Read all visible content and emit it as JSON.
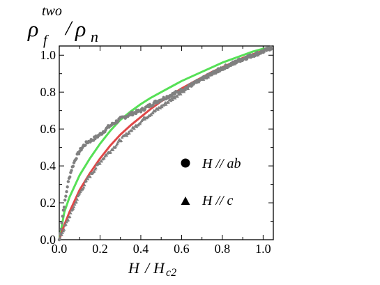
{
  "chart_data": {
    "type": "scatter",
    "ylabel": {
      "numerator_symbol": "ρ",
      "numerator_sub": "f",
      "numerator_sup": "two",
      "separator": "/",
      "denominator_symbol": "ρ",
      "denominator_sub": "n"
    },
    "xlabel": {
      "symbol": "H",
      "separator": "/",
      "denominator_symbol": "H",
      "denominator_sub": "c2"
    },
    "xlim": [
      0.0,
      1.05
    ],
    "ylim": [
      0.0,
      1.05
    ],
    "x_ticks": [
      0.0,
      0.2,
      0.4,
      0.6,
      0.8,
      1.0
    ],
    "y_ticks": [
      0.0,
      0.2,
      0.4,
      0.6,
      0.8,
      1.0
    ],
    "x_tick_labels": [
      "0.0",
      "0.2",
      "0.4",
      "0.6",
      "0.8",
      "1.0"
    ],
    "y_tick_labels": [
      "0.0",
      "0.2",
      "0.4",
      "0.6",
      "0.8",
      "1.0"
    ],
    "grid": false,
    "legend_position": "right",
    "legend": [
      {
        "label": "H // ab",
        "marker": "circle"
      },
      {
        "label": "H // c",
        "marker": "triangle"
      }
    ],
    "series": [
      {
        "marker": "circle",
        "color": "#808080",
        "x": [
          0.0,
          0.01,
          0.02,
          0.03,
          0.04,
          0.05,
          0.06,
          0.07,
          0.08,
          0.09,
          0.1,
          0.12,
          0.14,
          0.16,
          0.18,
          0.2,
          0.22,
          0.24,
          0.26,
          0.28,
          0.3,
          0.33,
          0.36,
          0.4,
          0.44,
          0.48,
          0.52,
          0.56,
          0.6,
          0.65,
          0.7,
          0.75,
          0.8,
          0.85,
          0.9,
          0.95,
          1.0,
          1.04
        ],
        "y": [
          0.0,
          0.08,
          0.16,
          0.22,
          0.29,
          0.34,
          0.38,
          0.41,
          0.44,
          0.46,
          0.48,
          0.51,
          0.53,
          0.54,
          0.555,
          0.57,
          0.59,
          0.61,
          0.625,
          0.64,
          0.655,
          0.67,
          0.685,
          0.7,
          0.725,
          0.75,
          0.77,
          0.79,
          0.81,
          0.84,
          0.87,
          0.9,
          0.93,
          0.955,
          0.98,
          1.0,
          1.02,
          1.04
        ]
      },
      {
        "marker": "triangle",
        "color": "#808080",
        "x": [
          0.0,
          0.02,
          0.04,
          0.06,
          0.08,
          0.1,
          0.12,
          0.14,
          0.16,
          0.18,
          0.2,
          0.23,
          0.26,
          0.3,
          0.34,
          0.38,
          0.42,
          0.46,
          0.5,
          0.55,
          0.6,
          0.65,
          0.7,
          0.75,
          0.8,
          0.85,
          0.9,
          0.95,
          1.0,
          1.04
        ],
        "y": [
          0.0,
          0.05,
          0.1,
          0.15,
          0.2,
          0.25,
          0.29,
          0.33,
          0.36,
          0.39,
          0.42,
          0.46,
          0.49,
          0.54,
          0.58,
          0.62,
          0.66,
          0.69,
          0.72,
          0.76,
          0.8,
          0.84,
          0.87,
          0.9,
          0.93,
          0.955,
          0.98,
          1.0,
          1.02,
          1.04
        ]
      },
      {
        "type": "line",
        "color": "#44dd44",
        "x": [
          0.0,
          0.025,
          0.05,
          0.075,
          0.1,
          0.15,
          0.2,
          0.25,
          0.3,
          0.35,
          0.4,
          0.45,
          0.5,
          0.55,
          0.6,
          0.65,
          0.7,
          0.75,
          0.8,
          0.85,
          0.9,
          0.95,
          1.0,
          1.04
        ],
        "y": [
          0.0,
          0.15,
          0.23,
          0.29,
          0.35,
          0.44,
          0.52,
          0.59,
          0.65,
          0.695,
          0.735,
          0.77,
          0.8,
          0.83,
          0.86,
          0.885,
          0.91,
          0.935,
          0.96,
          0.98,
          1.0,
          1.02,
          1.035,
          1.04
        ]
      },
      {
        "type": "line",
        "color": "#dd3333",
        "x": [
          0.0,
          0.025,
          0.05,
          0.075,
          0.1,
          0.15,
          0.2,
          0.25,
          0.3,
          0.35,
          0.4,
          0.45,
          0.5,
          0.55,
          0.6,
          0.65,
          0.7,
          0.75,
          0.8,
          0.85,
          0.9,
          0.95,
          1.0,
          1.04
        ],
        "y": [
          0.0,
          0.08,
          0.15,
          0.21,
          0.27,
          0.36,
          0.44,
          0.51,
          0.57,
          0.62,
          0.665,
          0.71,
          0.75,
          0.785,
          0.82,
          0.85,
          0.88,
          0.91,
          0.935,
          0.96,
          0.985,
          1.005,
          1.025,
          1.04
        ]
      }
    ]
  }
}
